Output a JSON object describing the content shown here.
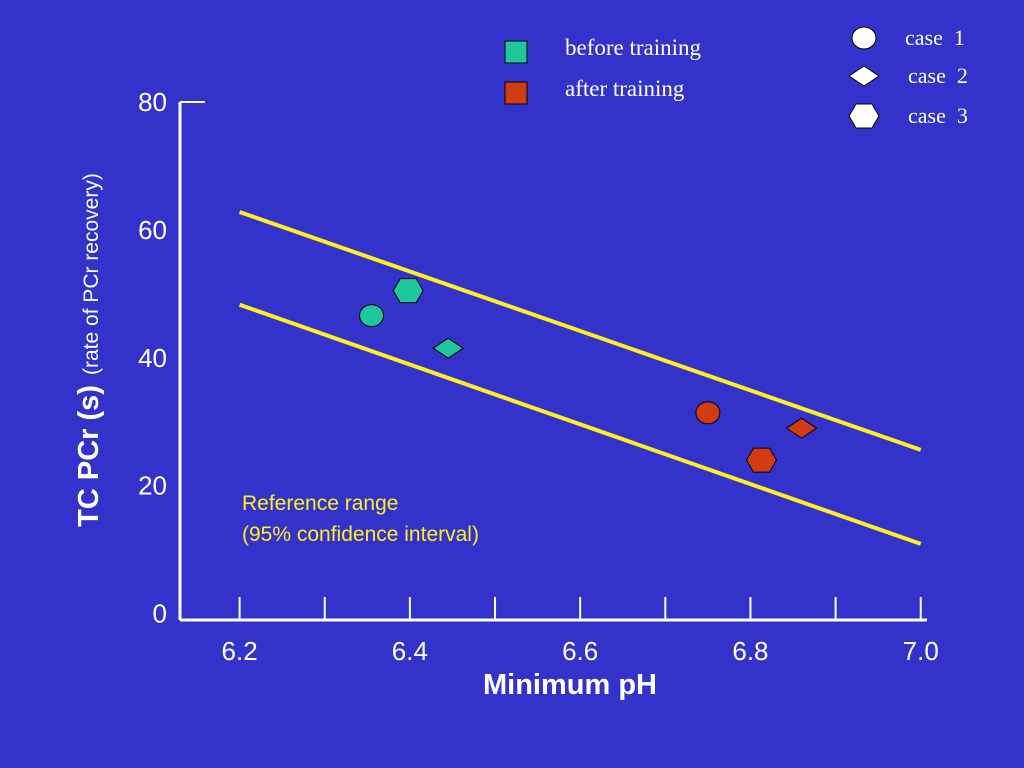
{
  "chart_data": {
    "type": "scatter",
    "xlabel": "Minimum pH",
    "ylabel": "TC PCr (s)",
    "ylabel_sub": "(rate of PCr recovery)",
    "xlim": [
      6.13,
      7.005
    ],
    "ylim": [
      -1,
      80
    ],
    "xticks": [
      6.2,
      6.4,
      6.6,
      6.8,
      {
        "value": 7,
        "label": "7.0"
      }
    ],
    "xminor": [
      6.3,
      6.5,
      6.7,
      6.9
    ],
    "yticks": [
      0,
      20,
      40,
      60,
      80
    ],
    "grid": false,
    "series": [
      {
        "name": "before training",
        "color": "#1ec89c",
        "x": [
          6.355,
          6.398,
          6.445
        ],
        "values": [
          46.6,
          50.5,
          41.5
        ],
        "markers": [
          "circle",
          "hexagon",
          "diamond"
        ]
      },
      {
        "name": "after training",
        "color": "#d23c12",
        "x": [
          6.75,
          6.86,
          6.813
        ],
        "values": [
          31.4,
          29.0,
          24.0
        ],
        "markers": [
          "circle",
          "diamond",
          "hexagon"
        ]
      }
    ],
    "case_legend": [
      {
        "label": "case  1",
        "marker": "circle"
      },
      {
        "label": "case  2",
        "marker": "diamond"
      },
      {
        "label": "case  3",
        "marker": "hexagon"
      }
    ],
    "reference_lines": [
      {
        "x": [
          6.2,
          7.0
        ],
        "values": [
          62.8,
          25.6
        ]
      },
      {
        "x": [
          6.2,
          7.0
        ],
        "values": [
          48.3,
          10.9
        ]
      }
    ],
    "reference_color": "#ffee22",
    "annotation": [
      "Reference range",
      "(95% confidence interval)"
    ]
  }
}
